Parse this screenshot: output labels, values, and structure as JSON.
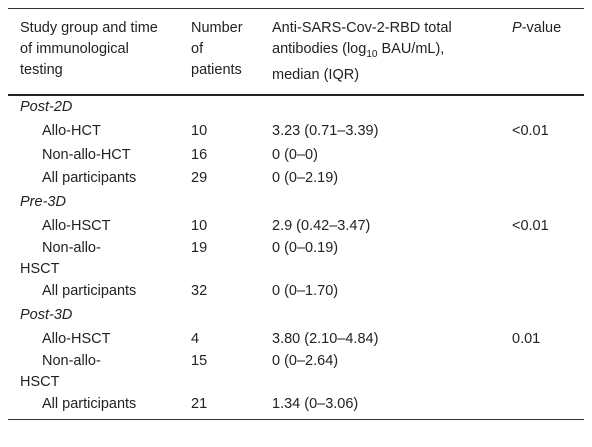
{
  "table": {
    "header": [
      [
        "Study group and time of immunological testing"
      ],
      [
        "Number of patients"
      ],
      [
        "Anti-SARS-Cov-2-RBD total antibodies (log",
        "10",
        " BAU/mL), median (IQR)"
      ],
      [
        "P",
        "-value"
      ]
    ],
    "rows": [
      {
        "group": "Post-2D"
      },
      {
        "label": "Allo-HCT",
        "n": 10,
        "antibodies": "3.23 (0.71–3.39)",
        "p": "<0.01"
      },
      {
        "label": "Non-allo-HCT",
        "n": 16,
        "antibodies": "0 (0–0)"
      },
      {
        "label": "All participants",
        "n": 29,
        "antibodies": "0 (0–2.19)"
      },
      {
        "group": "Pre-3D"
      },
      {
        "label": "Allo-HSCT",
        "n": 10,
        "antibodies": "2.9 (0.42–3.47)",
        "p": "<0.01"
      },
      {
        "label": "Non-allo-HSCT",
        "n": 19,
        "antibodies": "0 (0–0.19)"
      },
      {
        "label": "All participants",
        "n": 32,
        "antibodies": "0 (0–1.70)"
      },
      {
        "group": "Post-3D"
      },
      {
        "label": "Allo-HSCT",
        "n": 4,
        "antibodies": "3.80 (2.10–4.84)",
        "p": "0.01"
      },
      {
        "label": "Non-allo-HSCT",
        "n": 15,
        "antibodies": "0 (0–2.64)"
      },
      {
        "label": "All participants",
        "n": 21,
        "antibodies": "1.34 (0–3.06)"
      }
    ]
  }
}
